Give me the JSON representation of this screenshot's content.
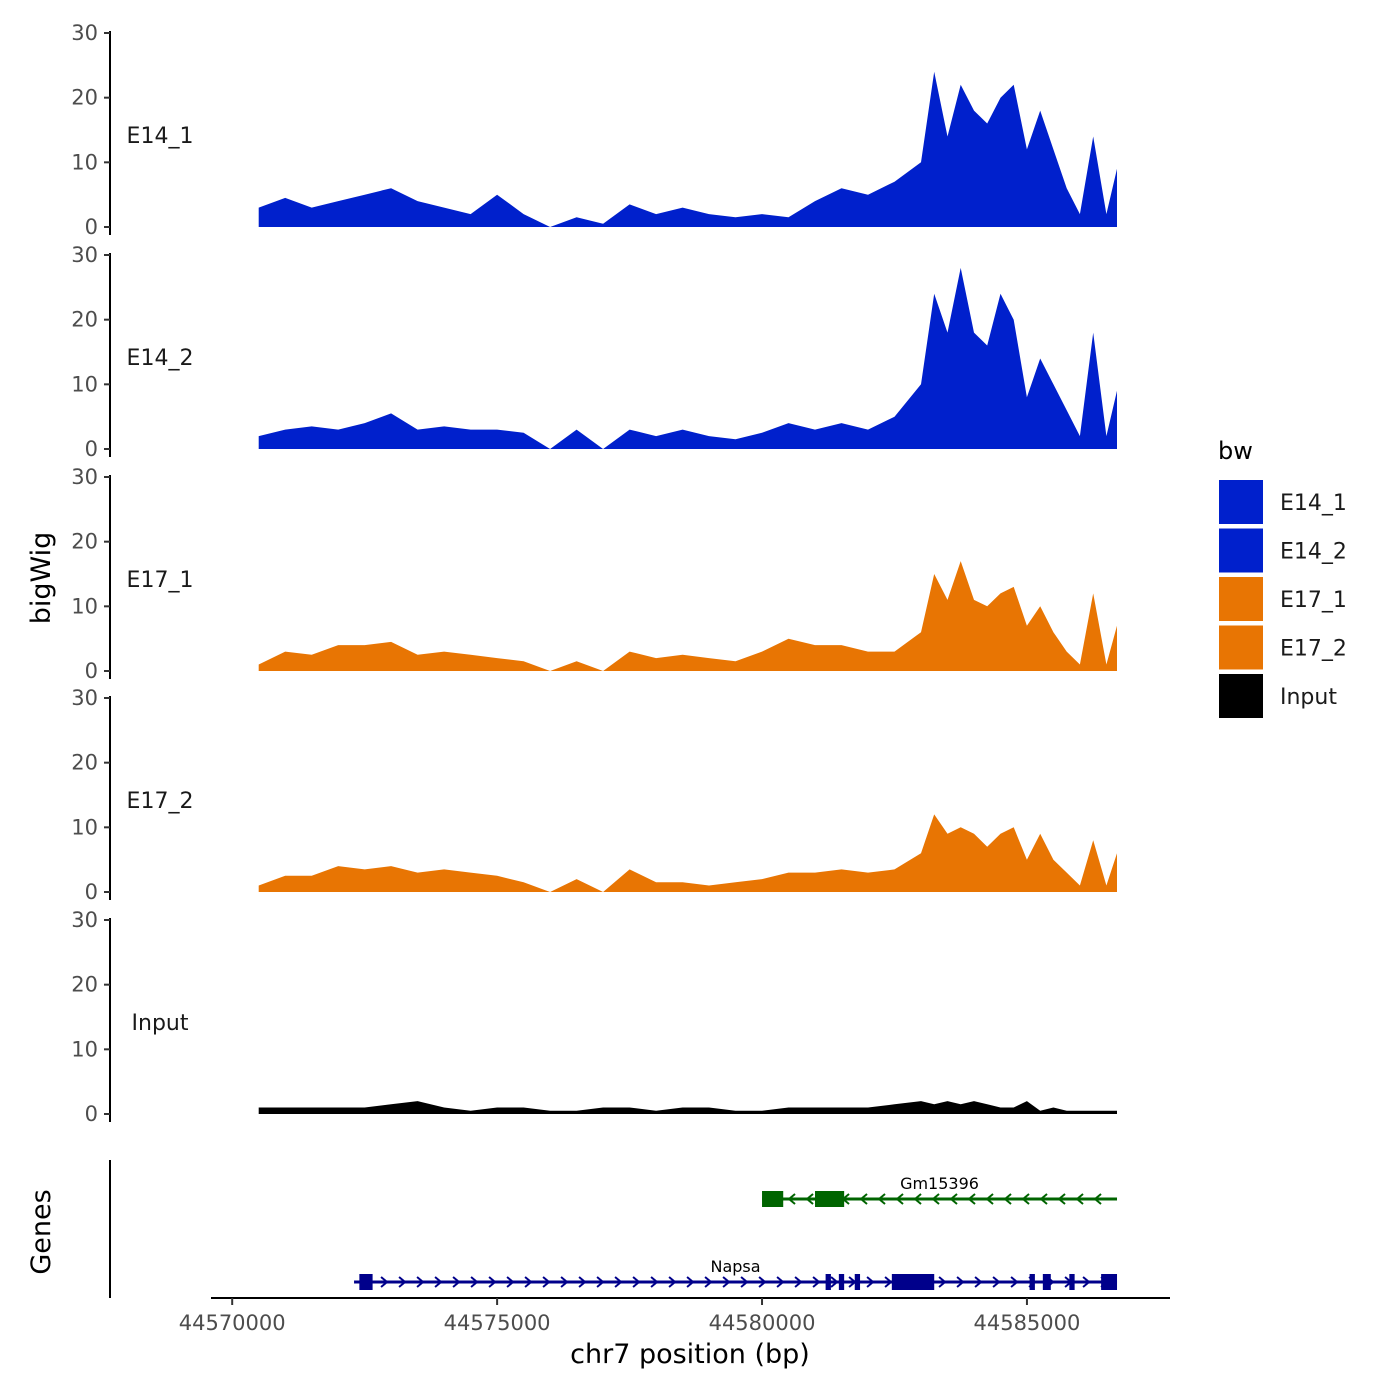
{
  "chart_data": {
    "type": "area",
    "title": "",
    "xlabel": "chr7 position (bp)",
    "ylabel": "bigWig",
    "genes_label": "Genes",
    "xlim": [
      44569600,
      44587700
    ],
    "x_ticks": [
      44570000,
      44575000,
      44580000,
      44585000
    ],
    "x_tick_labels": [
      "44570000",
      "44575000",
      "44580000",
      "44585000"
    ],
    "ylim": [
      0,
      30
    ],
    "y_ticks": [
      0,
      10,
      20,
      30
    ],
    "y_tick_labels": [
      "0",
      "10",
      "20",
      "30"
    ],
    "legend": {
      "title": "bw",
      "position": "right",
      "entries": [
        {
          "label": "E14_1",
          "color": "#0020CC"
        },
        {
          "label": "E14_2",
          "color": "#0020CC"
        },
        {
          "label": "E17_1",
          "color": "#E87503"
        },
        {
          "label": "E17_2",
          "color": "#E87503"
        },
        {
          "label": "Input",
          "color": "#000000"
        }
      ]
    },
    "x": [
      44570500,
      44571000,
      44571500,
      44572000,
      44572500,
      44573000,
      44573500,
      44574000,
      44574500,
      44575000,
      44575500,
      44576000,
      44576500,
      44577000,
      44577500,
      44578000,
      44578500,
      44579000,
      44579500,
      44580000,
      44580500,
      44581000,
      44581500,
      44582000,
      44582500,
      44583000,
      44583250,
      44583500,
      44583750,
      44584000,
      44584250,
      44584500,
      44584750,
      44585000,
      44585250,
      44585500,
      44585750,
      44586000,
      44586250,
      44586500,
      44586700
    ],
    "series": [
      {
        "name": "E14_1",
        "color": "#0020CC",
        "values": [
          3,
          4.5,
          3,
          4,
          5,
          6,
          4,
          3,
          2,
          5,
          2,
          0,
          1.5,
          0.5,
          3.5,
          2,
          3,
          2,
          1.5,
          2,
          1.5,
          4,
          6,
          5,
          7,
          10,
          24,
          14,
          22,
          18,
          16,
          20,
          22,
          12,
          18,
          12,
          6,
          2,
          14,
          2,
          9
        ]
      },
      {
        "name": "E14_2",
        "color": "#0020CC",
        "values": [
          2,
          3,
          3.5,
          3,
          4,
          5.5,
          3,
          3.5,
          3,
          3,
          2.5,
          0,
          3,
          0,
          3,
          2,
          3,
          2,
          1.5,
          2.5,
          4,
          3,
          4,
          3,
          5,
          10,
          24,
          18,
          28,
          18,
          16,
          24,
          20,
          8,
          14,
          10,
          6,
          2,
          18,
          2,
          9
        ]
      },
      {
        "name": "E17_1",
        "color": "#E87503",
        "values": [
          1,
          3,
          2.5,
          4,
          4,
          4.5,
          2.5,
          3,
          2.5,
          2,
          1.5,
          0,
          1.5,
          0,
          3,
          2,
          2.5,
          2,
          1.5,
          3,
          5,
          4,
          4,
          3,
          3,
          6,
          15,
          11,
          17,
          11,
          10,
          12,
          13,
          7,
          10,
          6,
          3,
          1,
          12,
          1,
          7
        ]
      },
      {
        "name": "E17_2",
        "color": "#E87503",
        "values": [
          1,
          2.5,
          2.5,
          4,
          3.5,
          4,
          3,
          3.5,
          3,
          2.5,
          1.5,
          0,
          2,
          0,
          3.5,
          1.5,
          1.5,
          1,
          1.5,
          2,
          3,
          3,
          3.5,
          3,
          3.5,
          6,
          12,
          9,
          10,
          9,
          7,
          9,
          10,
          5,
          9,
          5,
          3,
          1,
          8,
          1,
          6
        ]
      },
      {
        "name": "Input",
        "color": "#000000",
        "values": [
          1,
          1,
          1,
          1,
          1,
          1.5,
          2,
          1,
          0.5,
          1,
          1,
          0.5,
          0.5,
          1,
          1,
          0.5,
          1,
          1,
          0.5,
          0.5,
          1,
          1,
          1,
          1,
          1.5,
          2,
          1.5,
          2,
          1.5,
          2,
          1.5,
          1,
          1,
          2,
          0.5,
          1,
          0.5,
          0.5,
          0.5,
          0.5,
          0.5
        ]
      }
    ],
    "genes": [
      {
        "name": "Gm15396",
        "color": "#006400",
        "strand": "-",
        "start": 44580000,
        "end": 44586700,
        "exons": [
          [
            44580000,
            44580400
          ],
          [
            44581000,
            44581550
          ]
        ]
      },
      {
        "name": "Napsa",
        "color": "#00008B",
        "strand": "+",
        "start": 44572300,
        "end": 44586700,
        "exons": [
          [
            44572400,
            44572650
          ],
          [
            44581200,
            44581300
          ],
          [
            44581450,
            44581550
          ],
          [
            44581750,
            44581850
          ],
          [
            44582450,
            44583250
          ],
          [
            44585050,
            44585150
          ],
          [
            44585300,
            44585450
          ],
          [
            44585800,
            44585900
          ],
          [
            44586400,
            44586700
          ]
        ]
      }
    ]
  }
}
